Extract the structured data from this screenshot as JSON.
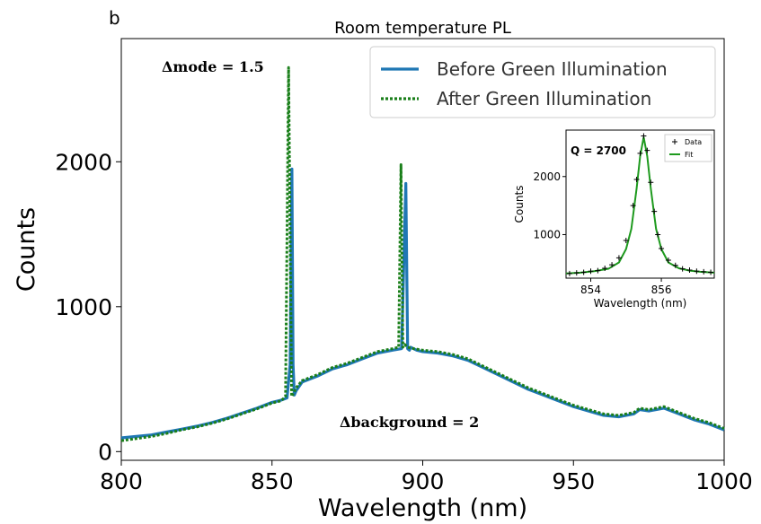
{
  "panel_label": "b",
  "chart_data": [
    {
      "type": "line",
      "title": "Room temperature PL",
      "xlabel": "Wavelength (nm)",
      "ylabel": "Counts",
      "xlim": [
        800,
        1000
      ],
      "ylim": [
        -60,
        2850
      ],
      "xticks": [
        800,
        850,
        900,
        950,
        1000
      ],
      "yticks": [
        0,
        1000,
        2000
      ],
      "legend_position": "top-right",
      "grid": false,
      "series": [
        {
          "name": "Before Green Illumination",
          "color": "#1f77b4",
          "style": "solid",
          "x": [
            800,
            805,
            810,
            815,
            820,
            825,
            830,
            835,
            840,
            845,
            850,
            853,
            855,
            856,
            856.6,
            857,
            857.4,
            858,
            860,
            865,
            870,
            875,
            880,
            885,
            890,
            893,
            894.4,
            895,
            895.6,
            896,
            898,
            900,
            905,
            910,
            915,
            920,
            925,
            930,
            935,
            940,
            945,
            950,
            955,
            960,
            965,
            970,
            972,
            975,
            980,
            985,
            990,
            995,
            1000
          ],
          "y": [
            95,
            105,
            115,
            135,
            155,
            175,
            200,
            230,
            265,
            300,
            340,
            355,
            370,
            600,
            1950,
            600,
            390,
            420,
            480,
            520,
            570,
            600,
            640,
            680,
            700,
            710,
            1850,
            710,
            700,
            720,
            700,
            690,
            680,
            660,
            630,
            580,
            530,
            480,
            430,
            390,
            350,
            310,
            280,
            250,
            240,
            260,
            290,
            280,
            300,
            260,
            220,
            190,
            150
          ]
        },
        {
          "name": "After Green Illumination",
          "color": "#1a7f1a",
          "style": "dotted",
          "x": [
            800,
            805,
            810,
            815,
            820,
            825,
            830,
            835,
            840,
            845,
            850,
            853,
            854.5,
            855.5,
            856.5,
            858,
            860,
            865,
            870,
            875,
            880,
            885,
            890,
            892,
            892.8,
            893.4,
            894,
            895,
            897,
            900,
            905,
            910,
            915,
            920,
            925,
            930,
            935,
            940,
            945,
            950,
            955,
            960,
            965,
            970,
            972,
            975,
            980,
            985,
            990,
            995,
            1000
          ],
          "y": [
            75,
            90,
            105,
            125,
            150,
            170,
            195,
            225,
            260,
            295,
            335,
            350,
            380,
            2650,
            380,
            440,
            490,
            530,
            580,
            610,
            650,
            690,
            710,
            720,
            1980,
            720,
            740,
            720,
            710,
            700,
            690,
            670,
            640,
            590,
            540,
            490,
            440,
            400,
            360,
            320,
            290,
            260,
            250,
            270,
            300,
            290,
            310,
            270,
            230,
            200,
            160
          ]
        }
      ],
      "annotations": [
        "Δmode = 1.5",
        "Δbackground = 2"
      ]
    },
    {
      "type": "scatter",
      "title": "",
      "xlabel": "Wavelength (nm)",
      "ylabel": "Counts",
      "xlim": [
        853.3,
        857.5
      ],
      "ylim": [
        250,
        2800
      ],
      "xticks": [
        854,
        856
      ],
      "yticks": [
        1000,
        2000
      ],
      "legend_position": "top-right",
      "series": [
        {
          "name": "Data",
          "marker": "+",
          "color": "#000000",
          "x": [
            853.4,
            853.6,
            853.8,
            854.0,
            854.2,
            854.4,
            854.6,
            854.8,
            855.0,
            855.2,
            855.3,
            855.4,
            855.5,
            855.6,
            855.7,
            855.8,
            855.9,
            856.0,
            856.2,
            856.4,
            856.6,
            856.8,
            857.0,
            857.2,
            857.4
          ],
          "y": [
            330,
            340,
            350,
            370,
            380,
            420,
            480,
            600,
            900,
            1500,
            1950,
            2400,
            2700,
            2450,
            1900,
            1400,
            1000,
            760,
            560,
            470,
            410,
            390,
            370,
            360,
            350
          ]
        },
        {
          "name": "Fit",
          "color": "#1e9a1e",
          "style": "solid",
          "x": [
            853.3,
            853.7,
            854.1,
            854.5,
            854.8,
            855.0,
            855.15,
            855.3,
            855.4,
            855.5,
            855.6,
            855.7,
            855.85,
            856.0,
            856.2,
            856.5,
            856.8,
            857.1,
            857.5
          ],
          "y": [
            330,
            345,
            370,
            410,
            520,
            750,
            1100,
            1800,
            2350,
            2680,
            2350,
            1800,
            1100,
            750,
            520,
            420,
            380,
            360,
            345
          ]
        }
      ],
      "annotations": [
        "Q = 2700"
      ]
    }
  ]
}
